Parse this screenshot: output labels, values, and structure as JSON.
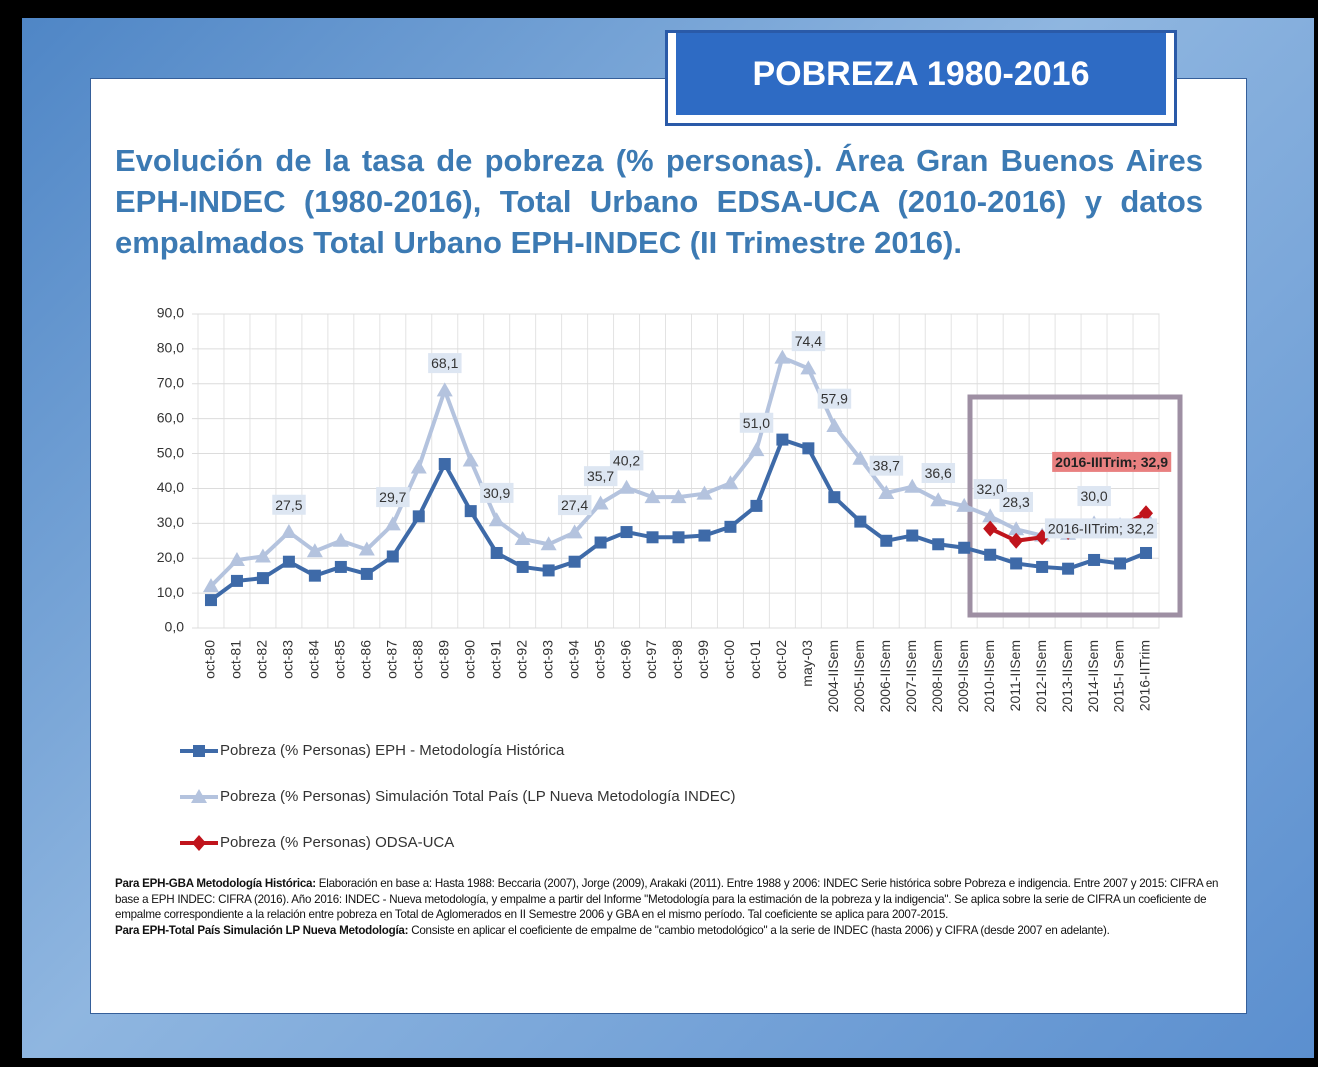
{
  "slide_title": "POBREZA 1980-2016",
  "heading": "Evolución de la tasa de pobreza (% personas). Área Gran Buenos Aires EPH-INDEC (1980-2016), Total Urbano EDSA-UCA (2010-2016) y datos empalmados Total Urbano EPH-INDEC (II Trimestre 2016).",
  "chart_data": {
    "type": "line",
    "categories": [
      "oct-80",
      "oct-81",
      "oct-82",
      "oct-83",
      "oct-84",
      "oct-85",
      "oct-86",
      "oct-87",
      "oct-88",
      "oct-89",
      "oct-90",
      "oct-91",
      "oct-92",
      "oct-93",
      "oct-94",
      "oct-95",
      "oct-96",
      "oct-97",
      "oct-98",
      "oct-99",
      "oct-00",
      "oct-01",
      "oct-02",
      "may-03",
      "2004-IISem",
      "2005-IISem",
      "2006-IISem",
      "2007-IISem",
      "2008-IISem",
      "2009-IISem",
      "2010-IISem",
      "2011-IISem",
      "2012-IISem",
      "2013-IISem",
      "2014-IISem",
      "2015-I Sem",
      "2016-IITrim"
    ],
    "series": [
      {
        "name": "Pobreza (% Personas) EPH - Metodología Histórica",
        "color": "#3e6aa8",
        "marker": "square",
        "values": [
          8.0,
          13.5,
          14.3,
          19.0,
          15.0,
          17.5,
          15.5,
          20.5,
          32.0,
          47.0,
          33.5,
          21.5,
          17.5,
          16.5,
          19.0,
          24.5,
          27.5,
          26.0,
          26.0,
          26.5,
          29.0,
          35.0,
          54.0,
          51.5,
          37.5,
          30.5,
          25.0,
          26.5,
          24.0,
          23.0,
          21.0,
          18.5,
          17.5,
          17.0,
          19.5,
          18.5,
          21.5
        ]
      },
      {
        "name": "Pobreza (% Personas) Simulación Total País (LP Nueva Metodología INDEC)",
        "color": "#b4c3de",
        "marker": "triangle",
        "values": [
          12.0,
          19.5,
          20.5,
          27.5,
          22.0,
          25.0,
          22.5,
          29.7,
          46.0,
          68.1,
          48.0,
          30.9,
          25.5,
          24.0,
          27.4,
          35.7,
          40.2,
          37.5,
          37.5,
          38.5,
          41.5,
          51.0,
          77.5,
          74.4,
          57.9,
          48.5,
          38.7,
          40.5,
          36.6,
          35.0,
          32.0,
          28.3,
          26.5,
          27.0,
          30.0,
          29.5,
          32.2
        ],
        "value_labels": [
          null,
          null,
          null,
          "27,5",
          null,
          null,
          null,
          "29,7",
          null,
          "68,1",
          null,
          "30,9",
          null,
          null,
          "27,4",
          "35,7",
          "40,2",
          null,
          null,
          null,
          null,
          "51,0",
          null,
          "74,4",
          "57,9",
          null,
          "38,7",
          null,
          "36,6",
          null,
          "32,0",
          "28,3",
          null,
          null,
          "30,0",
          null,
          "2016-IITrim; 32,2"
        ]
      },
      {
        "name": "Pobreza (% Personas) ODSA-UCA",
        "color": "#c0141c",
        "marker": "diamond",
        "values": [
          null,
          null,
          null,
          null,
          null,
          null,
          null,
          null,
          null,
          null,
          null,
          null,
          null,
          null,
          null,
          null,
          null,
          null,
          null,
          null,
          null,
          null,
          null,
          null,
          null,
          null,
          null,
          null,
          null,
          null,
          28.5,
          25.0,
          26.0,
          27.5,
          29.0,
          29.0,
          32.9
        ],
        "value_labels": [
          null,
          null,
          null,
          null,
          null,
          null,
          null,
          null,
          null,
          null,
          null,
          null,
          null,
          null,
          null,
          null,
          null,
          null,
          null,
          null,
          null,
          null,
          null,
          null,
          null,
          null,
          null,
          null,
          null,
          null,
          null,
          null,
          null,
          null,
          null,
          null,
          "2016-IIITrim; 32,9"
        ]
      }
    ],
    "ylim": [
      0,
      90
    ],
    "yticks": [
      {
        "value": 0,
        "label": "0,0"
      },
      {
        "value": 10,
        "label": "10,0"
      },
      {
        "value": 20,
        "label": "20,0"
      },
      {
        "value": 30,
        "label": "30,0"
      },
      {
        "value": 40,
        "label": "40,0"
      },
      {
        "value": 50,
        "label": "50,0"
      },
      {
        "value": 60,
        "label": "60,0"
      },
      {
        "value": 70,
        "label": "70,0"
      },
      {
        "value": 80,
        "label": "80,0"
      },
      {
        "value": 90,
        "label": "90,0"
      }
    ],
    "grid": true,
    "legend": "bottom"
  },
  "footnote": [
    {
      "bold": "Para EPH-GBA Metodología Histórica:",
      "text": " Elaboración en base a: Hasta 1988: Beccaria (2007), Jorge (2009), Arakaki (2011). Entre 1988 y 2006: INDEC Serie histórica sobre Pobreza e indigencia. Entre 2007 y 2015: CIFRA en base a EPH INDEC: CIFRA (2016). Año 2016: INDEC - Nueva metodología, y empalme a partir del Informe \"Metodología para la estimación de la pobreza y la indigencia\". Se aplica sobre la serie de CIFRA un coeficiente de empalme correspondiente a la relación entre pobreza en Total de Aglomerados en II Semestre 2006 y GBA en el mismo período. Tal coeficiente se aplica para 2007-2015."
    },
    {
      "bold": "Para EPH-Total País Simulación LP Nueva Metodología:",
      "text": " Consiste en aplicar el coeficiente de empalme de \"cambio metodológico\" a la serie de INDEC (hasta 2006) y CIFRA (desde 2007 en adelante)."
    }
  ]
}
